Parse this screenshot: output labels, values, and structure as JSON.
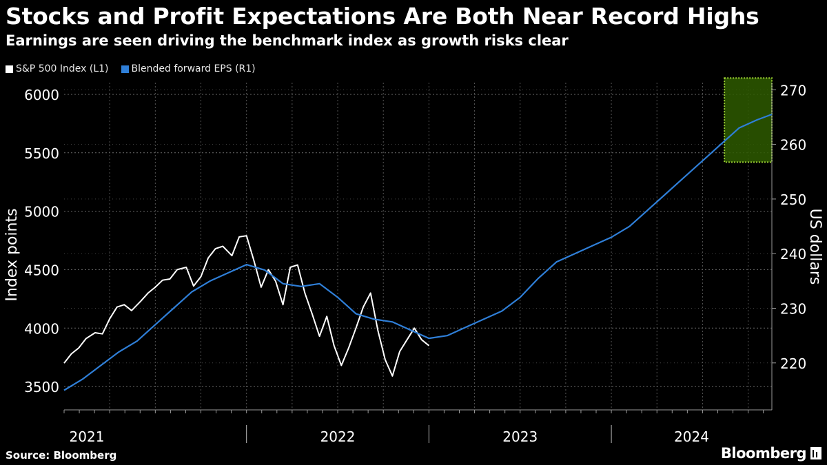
{
  "header": {
    "title": "Stocks and Profit Expectations Are Both Near Record Highs",
    "subtitle": "Earnings are seen driving the benchmark index as growth risks clear"
  },
  "footer": {
    "source": "Source: Bloomberg",
    "logo": "Bloomberg"
  },
  "colors": {
    "background": "#000000",
    "spx": "#ffffff",
    "eps": "#2f7fd8",
    "highlight_fill": "#2e5a00",
    "highlight_border": "#9acd32"
  },
  "chart_data": {
    "type": "line",
    "title": "Stocks and Profit Expectations Are Both Near Record Highs",
    "subtitle": "Earnings are seen driving the benchmark index as growth risks clear",
    "x_range": [
      2021.0,
      2024.88
    ],
    "x_ticks": [
      "2021",
      "2022",
      "2023",
      "2024"
    ],
    "y_left": {
      "label": "Index points",
      "lim": [
        3300,
        6100
      ],
      "ticks": [
        3500,
        4000,
        4500,
        5000,
        5500,
        6000
      ]
    },
    "y_right": {
      "label": "US dollars",
      "lim": [
        211.4,
        271.3
      ],
      "ticks": [
        220,
        230,
        240,
        250,
        260,
        270
      ]
    },
    "grid": true,
    "legend_position": "top-left",
    "series": [
      {
        "name": "S&P 500 Index (L1)",
        "axis": "left",
        "color": "#ffffff",
        "points": [
          [
            2021.0,
            3700
          ],
          [
            2021.04,
            3780
          ],
          [
            2021.08,
            3830
          ],
          [
            2021.12,
            3910
          ],
          [
            2021.17,
            3960
          ],
          [
            2021.21,
            3950
          ],
          [
            2021.25,
            4080
          ],
          [
            2021.29,
            4180
          ],
          [
            2021.33,
            4200
          ],
          [
            2021.37,
            4150
          ],
          [
            2021.42,
            4230
          ],
          [
            2021.46,
            4300
          ],
          [
            2021.5,
            4350
          ],
          [
            2021.54,
            4410
          ],
          [
            2021.58,
            4420
          ],
          [
            2021.62,
            4500
          ],
          [
            2021.67,
            4520
          ],
          [
            2021.71,
            4360
          ],
          [
            2021.75,
            4440
          ],
          [
            2021.79,
            4600
          ],
          [
            2021.83,
            4680
          ],
          [
            2021.87,
            4700
          ],
          [
            2021.92,
            4620
          ],
          [
            2021.96,
            4780
          ],
          [
            2022.0,
            4790
          ],
          [
            2022.04,
            4580
          ],
          [
            2022.08,
            4350
          ],
          [
            2022.12,
            4500
          ],
          [
            2022.16,
            4400
          ],
          [
            2022.2,
            4200
          ],
          [
            2022.24,
            4520
          ],
          [
            2022.28,
            4540
          ],
          [
            2022.32,
            4300
          ],
          [
            2022.36,
            4120
          ],
          [
            2022.4,
            3930
          ],
          [
            2022.44,
            4100
          ],
          [
            2022.48,
            3850
          ],
          [
            2022.52,
            3680
          ],
          [
            2022.56,
            3830
          ],
          [
            2022.6,
            4000
          ],
          [
            2022.64,
            4180
          ],
          [
            2022.68,
            4300
          ],
          [
            2022.72,
            3980
          ],
          [
            2022.76,
            3730
          ],
          [
            2022.8,
            3590
          ],
          [
            2022.84,
            3800
          ],
          [
            2022.88,
            3900
          ],
          [
            2022.92,
            4000
          ],
          [
            2022.96,
            3900
          ],
          [
            2023.0,
            3850
          ]
        ]
      },
      {
        "name": "Blended forward EPS (R1)",
        "axis": "right",
        "color": "#2f7fd8",
        "points": [
          [
            2021.0,
            215
          ],
          [
            2021.1,
            217
          ],
          [
            2021.2,
            219.5
          ],
          [
            2021.3,
            222
          ],
          [
            2021.4,
            224
          ],
          [
            2021.5,
            227
          ],
          [
            2021.6,
            230
          ],
          [
            2021.7,
            233
          ],
          [
            2021.8,
            235
          ],
          [
            2021.9,
            236.5
          ],
          [
            2022.0,
            238
          ],
          [
            2022.1,
            237
          ],
          [
            2022.2,
            234.5
          ],
          [
            2022.3,
            234
          ],
          [
            2022.4,
            234.5
          ],
          [
            2022.5,
            232
          ],
          [
            2022.6,
            229
          ],
          [
            2022.7,
            228
          ],
          [
            2022.8,
            227.5
          ],
          [
            2022.9,
            226
          ],
          [
            2023.0,
            224.5
          ],
          [
            2023.1,
            225
          ],
          [
            2023.2,
            226.5
          ],
          [
            2023.3,
            228
          ],
          [
            2023.4,
            229.5
          ],
          [
            2023.5,
            232
          ],
          [
            2023.6,
            235.5
          ],
          [
            2023.7,
            238.5
          ],
          [
            2023.8,
            240
          ],
          [
            2023.9,
            241.5
          ],
          [
            2024.0,
            243
          ],
          [
            2024.1,
            245
          ],
          [
            2024.2,
            248
          ],
          [
            2024.3,
            251
          ],
          [
            2024.4,
            254
          ],
          [
            2024.5,
            257
          ],
          [
            2024.6,
            260
          ],
          [
            2024.7,
            263
          ],
          [
            2024.8,
            264.5
          ],
          [
            2024.88,
            265.5
          ]
        ]
      }
    ],
    "highlight": {
      "x_range": [
        2024.62,
        2024.88
      ],
      "y_left_range": [
        5420,
        6140
      ]
    }
  }
}
